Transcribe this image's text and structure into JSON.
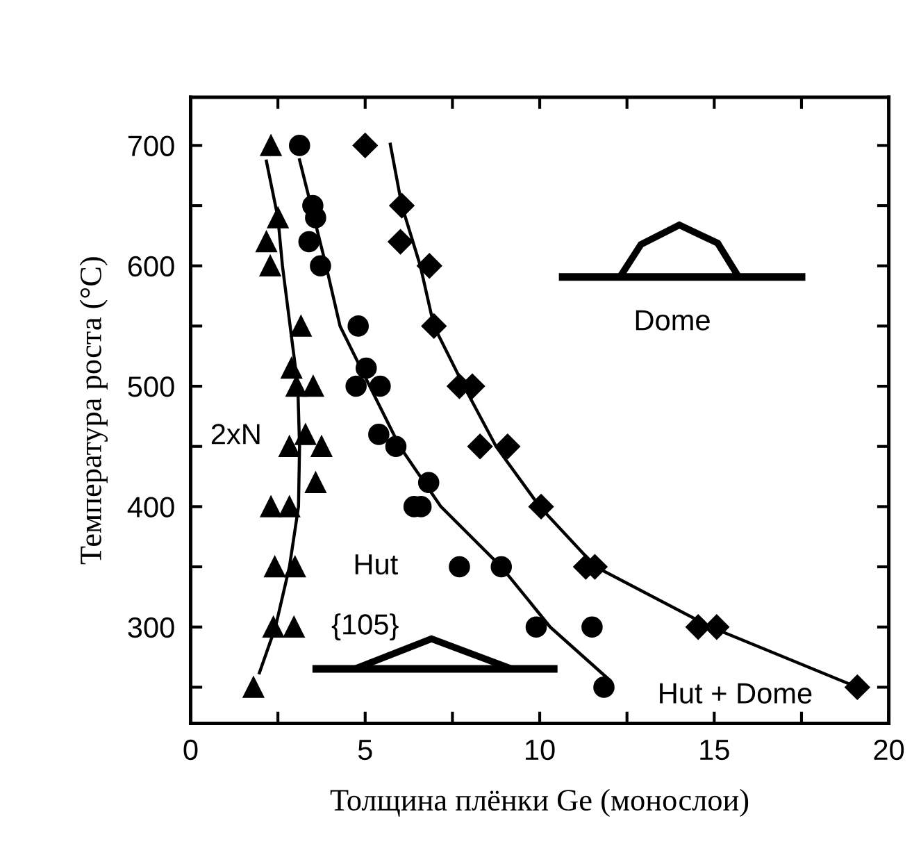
{
  "chart_data": {
    "type": "scatter",
    "xlabel": "Толщина плёнки Ge (монослои)",
    "ylabel": "Температура роста (°C)",
    "xlim": [
      0,
      20
    ],
    "ylim": [
      220,
      740
    ],
    "xticks": [
      0,
      {
        "value": 2.5,
        "label": null
      },
      5,
      {
        "value": 7.5,
        "label": null
      },
      10,
      {
        "value": 12.5,
        "label": null
      },
      15,
      {
        "value": 17.5,
        "label": null
      },
      20
    ],
    "yticks": [
      {
        "value": 250,
        "label": null
      },
      300,
      {
        "value": 350,
        "label": null
      },
      400,
      {
        "value": 450,
        "label": null
      },
      500,
      {
        "value": 550,
        "label": null
      },
      600,
      {
        "value": 650,
        "label": null
      },
      700
    ],
    "grid": false,
    "series": [
      {
        "marker": "triangle",
        "color": "#000000",
        "x": [
          2.3,
          2.5,
          2.17,
          2.28,
          3.16,
          2.89,
          3.03,
          3.51,
          3.29,
          2.83,
          3.75,
          3.58,
          2.3,
          2.83,
          2.41,
          2.99,
          2.37,
          2.96,
          1.8
        ],
        "values": [
          700,
          640,
          620,
          600,
          550,
          515,
          500,
          500,
          460,
          450,
          450,
          420,
          400,
          400,
          350,
          350,
          300,
          300,
          250
        ]
      },
      {
        "marker": "circle",
        "color": "#000000",
        "x": [
          3.12,
          3.5,
          3.58,
          3.39,
          3.72,
          4.8,
          5.03,
          4.74,
          5.43,
          5.39,
          5.88,
          6.82,
          6.4,
          6.6,
          7.7,
          8.9,
          9.9,
          11.5,
          11.84
        ],
        "values": [
          700,
          650,
          640,
          620,
          600,
          550,
          515,
          500,
          500,
          460,
          450,
          420,
          400,
          400,
          350,
          350,
          300,
          300,
          250
        ]
      },
      {
        "marker": "diamond",
        "color": "#000000",
        "x": [
          5.0,
          6.05,
          6.01,
          6.84,
          6.97,
          7.7,
          8.07,
          8.29,
          9.08,
          10.04,
          11.32,
          11.58,
          14.54,
          15.07,
          19.1
        ],
        "values": [
          700,
          650,
          620,
          600,
          550,
          500,
          500,
          450,
          450,
          400,
          350,
          350,
          300,
          300,
          250
        ]
      },
      {
        "type": "line",
        "marker": "none",
        "line_style": "solid",
        "color": "#000000",
        "x": [
          2.17,
          2.5,
          2.63,
          3.07,
          3.12,
          3.09,
          2.83,
          2.43,
          1.97
        ],
        "values": [
          687,
          640,
          600,
          500,
          450,
          400,
          350,
          300,
          262
        ]
      },
      {
        "type": "line",
        "marker": "none",
        "line_style": "solid",
        "color": "#000000",
        "x": [
          3.12,
          3.88,
          4.28,
          5.13,
          5.99,
          7.17,
          8.9,
          10.3,
          12.0
        ],
        "values": [
          688,
          600,
          550,
          500,
          450,
          400,
          350,
          300,
          256
        ]
      },
      {
        "type": "line",
        "marker": "none",
        "line_style": "solid",
        "color": "#000000",
        "x": [
          5.72,
          6.05,
          6.58,
          6.97,
          7.83,
          8.75,
          10.0,
          11.6,
          14.9,
          19.1
        ],
        "values": [
          701,
          650,
          600,
          550,
          500,
          450,
          400,
          350,
          300,
          250
        ]
      }
    ],
    "annotations": [
      "2xN",
      "Hut",
      "{105}",
      "Dome",
      "Hut + Dome"
    ]
  }
}
